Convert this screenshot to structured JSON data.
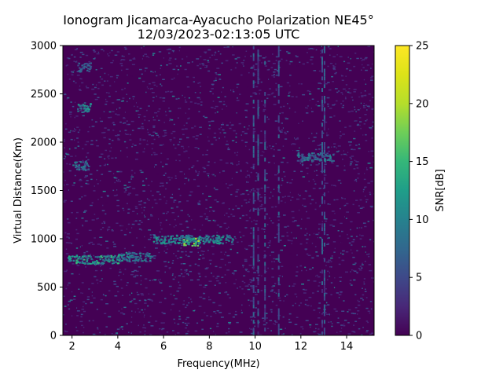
{
  "chart_data": {
    "type": "heatmap",
    "title": "Ionogram Jicamarca-Ayacucho Polarization NE45°",
    "subtitle": "12/03/2023-02:13:05 UTC",
    "xlabel": "Frequency(MHz)",
    "ylabel": "Virtual Distance(Km)",
    "xlim": [
      1.6,
      15.2
    ],
    "ylim": [
      0,
      3000
    ],
    "xticks": [
      "2",
      "4",
      "6",
      "8",
      "10",
      "12",
      "14"
    ],
    "xtick_values": [
      2,
      4,
      6,
      8,
      10,
      12,
      14
    ],
    "yticks": [
      "0",
      "500",
      "1000",
      "1500",
      "2000",
      "2500",
      "3000"
    ],
    "ytick_values": [
      0,
      500,
      1000,
      1500,
      2000,
      2500,
      3000
    ],
    "colorbar": {
      "label": "SNR[dB]",
      "range": [
        0,
        25
      ],
      "ticks": [
        "0",
        "5",
        "10",
        "15",
        "20",
        "25"
      ],
      "tick_values": [
        0,
        5,
        10,
        15,
        20,
        25
      ],
      "colormap": "viridis"
    },
    "background_color": "#440154",
    "echo_traces": [
      {
        "freq_range": [
          1.8,
          4.0
        ],
        "distance": 790,
        "snr": 14
      },
      {
        "freq_range": [
          4.0,
          5.5
        ],
        "distance": 820,
        "snr": 11
      },
      {
        "freq_range": [
          5.5,
          9.0
        ],
        "distance": 1000,
        "snr": 12
      },
      {
        "freq_range": [
          6.8,
          7.6
        ],
        "distance": 980,
        "snr": 18
      },
      {
        "freq_range": [
          2.2,
          2.8
        ],
        "distance": 2360,
        "snr": 12
      },
      {
        "freq_range": [
          2.0,
          2.7
        ],
        "distance": 1760,
        "snr": 10
      },
      {
        "freq_range": [
          2.2,
          2.8
        ],
        "distance": 2780,
        "snr": 8
      },
      {
        "freq_range": [
          11.8,
          13.4
        ],
        "distance": 1850,
        "snr": 9
      }
    ],
    "interference_bands_mhz": [
      9.9,
      10.1,
      10.4,
      11.0,
      12.9,
      13.0
    ]
  }
}
